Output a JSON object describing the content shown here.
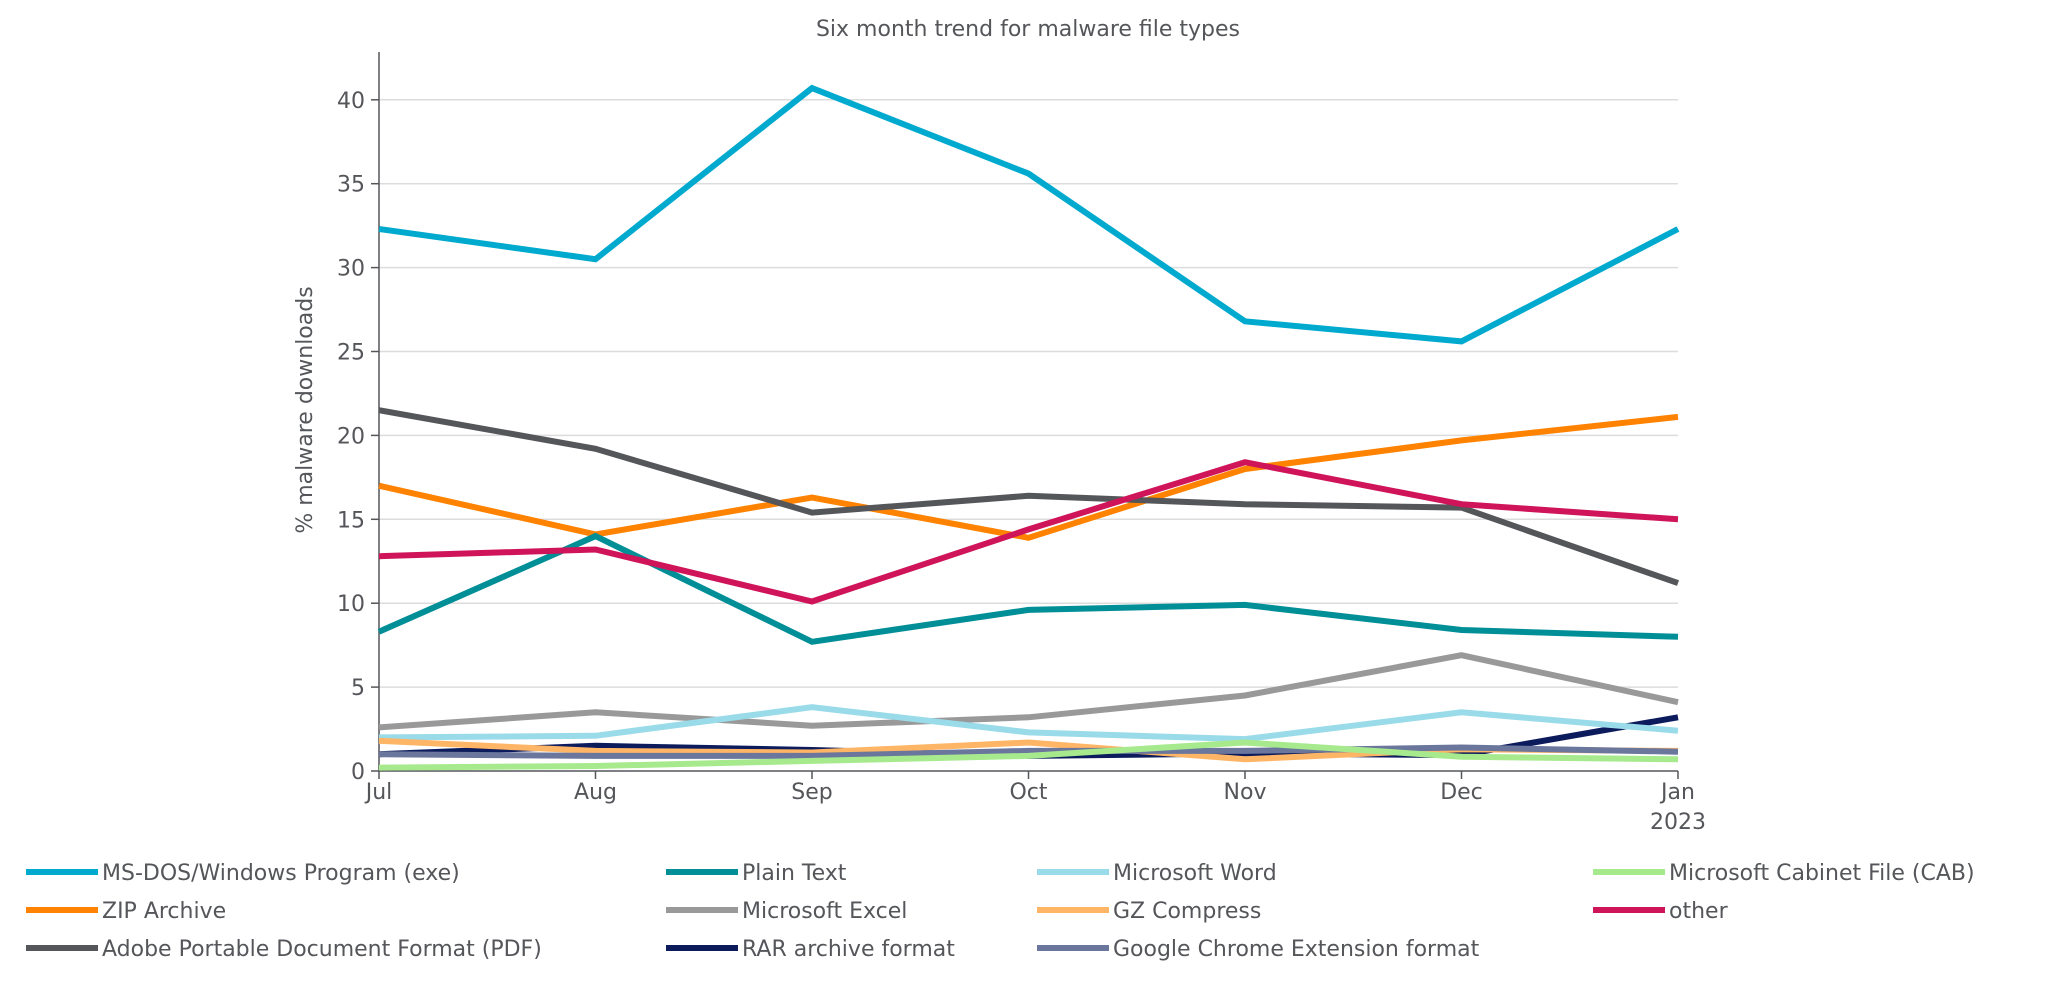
{
  "chart_data": {
    "type": "line",
    "title": "Six month trend for malware file types",
    "xlabel": "",
    "ylabel": "% malware downloads",
    "categories": [
      "Jul",
      "Aug",
      "Sep",
      "Oct",
      "Nov",
      "Dec",
      "Jan"
    ],
    "category_sublabels": [
      "",
      "",
      "",
      "",
      "",
      "",
      "2023"
    ],
    "ylim": [
      0,
      42.8
    ],
    "yticks": [
      0,
      5,
      10,
      15,
      20,
      25,
      30,
      35,
      40
    ],
    "grid": "horizontal",
    "legend_position": "bottom",
    "series": [
      {
        "name": "MS-DOS/Windows Program (exe)",
        "color": "#00a9ce",
        "values": [
          32.3,
          30.5,
          40.7,
          35.6,
          26.8,
          25.6,
          32.3
        ]
      },
      {
        "name": "ZIP Archive",
        "color": "#ff8200",
        "values": [
          17.0,
          14.1,
          16.3,
          13.9,
          18.0,
          19.7,
          21.1
        ]
      },
      {
        "name": "Adobe Portable Document Format (PDF)",
        "color": "#54565a",
        "values": [
          21.5,
          19.2,
          15.4,
          16.4,
          15.9,
          15.7,
          11.2
        ]
      },
      {
        "name": "Plain Text",
        "color": "#008e97",
        "values": [
          8.3,
          14.0,
          7.7,
          9.6,
          9.9,
          8.4,
          8.0
        ]
      },
      {
        "name": "Microsoft Excel",
        "color": "#999999",
        "values": [
          2.6,
          3.5,
          2.7,
          3.2,
          4.5,
          6.9,
          4.1
        ]
      },
      {
        "name": "RAR archive format",
        "color": "#0c1b5c",
        "values": [
          1.0,
          1.5,
          1.25,
          0.9,
          1.05,
          0.95,
          3.2
        ]
      },
      {
        "name": "Microsoft Word",
        "color": "#99dbe9",
        "values": [
          2.0,
          2.1,
          3.8,
          2.3,
          1.9,
          3.5,
          2.4
        ]
      },
      {
        "name": "GZ Compress",
        "color": "#ffb566",
        "values": [
          1.8,
          1.2,
          1.1,
          1.7,
          0.7,
          1.3,
          1.2
        ]
      },
      {
        "name": "Google Chrome Extension format",
        "color": "#6a769c",
        "values": [
          1.0,
          0.9,
          0.9,
          1.2,
          1.2,
          1.4,
          1.15
        ]
      },
      {
        "name": "Microsoft Cabinet File (CAB)",
        "color": "#a7ea8e",
        "values": [
          0.2,
          0.3,
          0.6,
          0.9,
          1.7,
          0.85,
          0.7
        ]
      },
      {
        "name": "other",
        "color": "#d0145a",
        "values": [
          12.8,
          13.2,
          10.1,
          14.4,
          18.4,
          15.9,
          15.0
        ]
      }
    ]
  }
}
